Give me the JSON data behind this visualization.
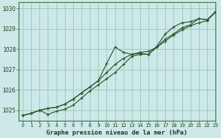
{
  "title": "Graphe pression niveau de la mer (hPa)",
  "bg_color": "#cce8e8",
  "grid_color": "#99ccbb",
  "line_color": "#2d5a2d",
  "xlim": [
    -0.5,
    23
  ],
  "ylim": [
    1024.5,
    1030.3
  ],
  "yticks": [
    1025,
    1026,
    1027,
    1028,
    1029,
    1030
  ],
  "xticks": [
    0,
    1,
    2,
    3,
    4,
    5,
    6,
    7,
    8,
    9,
    10,
    11,
    12,
    13,
    14,
    15,
    16,
    17,
    18,
    19,
    20,
    21,
    22,
    23
  ],
  "line1_x": [
    0,
    1,
    2,
    3,
    4,
    5,
    6,
    7,
    8,
    9,
    10,
    11,
    12,
    13,
    14,
    15,
    16,
    17,
    18,
    19,
    20,
    21,
    22,
    23
  ],
  "line1_y": [
    1024.75,
    1024.85,
    1025.0,
    1025.1,
    1025.15,
    1025.3,
    1025.55,
    1025.85,
    1026.15,
    1026.45,
    1026.85,
    1027.25,
    1027.55,
    1027.75,
    1027.85,
    1027.9,
    1028.1,
    1028.4,
    1028.7,
    1028.95,
    1029.15,
    1029.3,
    1029.4,
    1029.85
  ],
  "line2_x": [
    0,
    1,
    2,
    3,
    4,
    5,
    6,
    7,
    8,
    9,
    10,
    11,
    12,
    13,
    14,
    15,
    16,
    17,
    18,
    19,
    20,
    21,
    22,
    23
  ],
  "line2_y": [
    1024.75,
    1024.85,
    1025.0,
    1025.1,
    1025.15,
    1025.3,
    1025.55,
    1025.85,
    1026.15,
    1026.45,
    1027.3,
    1028.1,
    1027.85,
    1027.75,
    1027.8,
    1027.75,
    1028.15,
    1028.75,
    1029.1,
    1029.3,
    1029.35,
    1029.5,
    1029.45,
    1029.85
  ],
  "line3_x": [
    0,
    1,
    2,
    3,
    4,
    5,
    6,
    7,
    8,
    9,
    10,
    11,
    12,
    13,
    14,
    15,
    16,
    17,
    18,
    19,
    20,
    21,
    22,
    23
  ],
  "line3_y": [
    1024.75,
    1024.85,
    1025.0,
    1024.8,
    1024.95,
    1025.05,
    1025.25,
    1025.6,
    1025.95,
    1026.25,
    1026.55,
    1026.85,
    1027.25,
    1027.65,
    1027.75,
    1027.75,
    1028.1,
    1028.5,
    1028.75,
    1029.05,
    1029.2,
    1029.5,
    1029.45,
    1029.8
  ]
}
